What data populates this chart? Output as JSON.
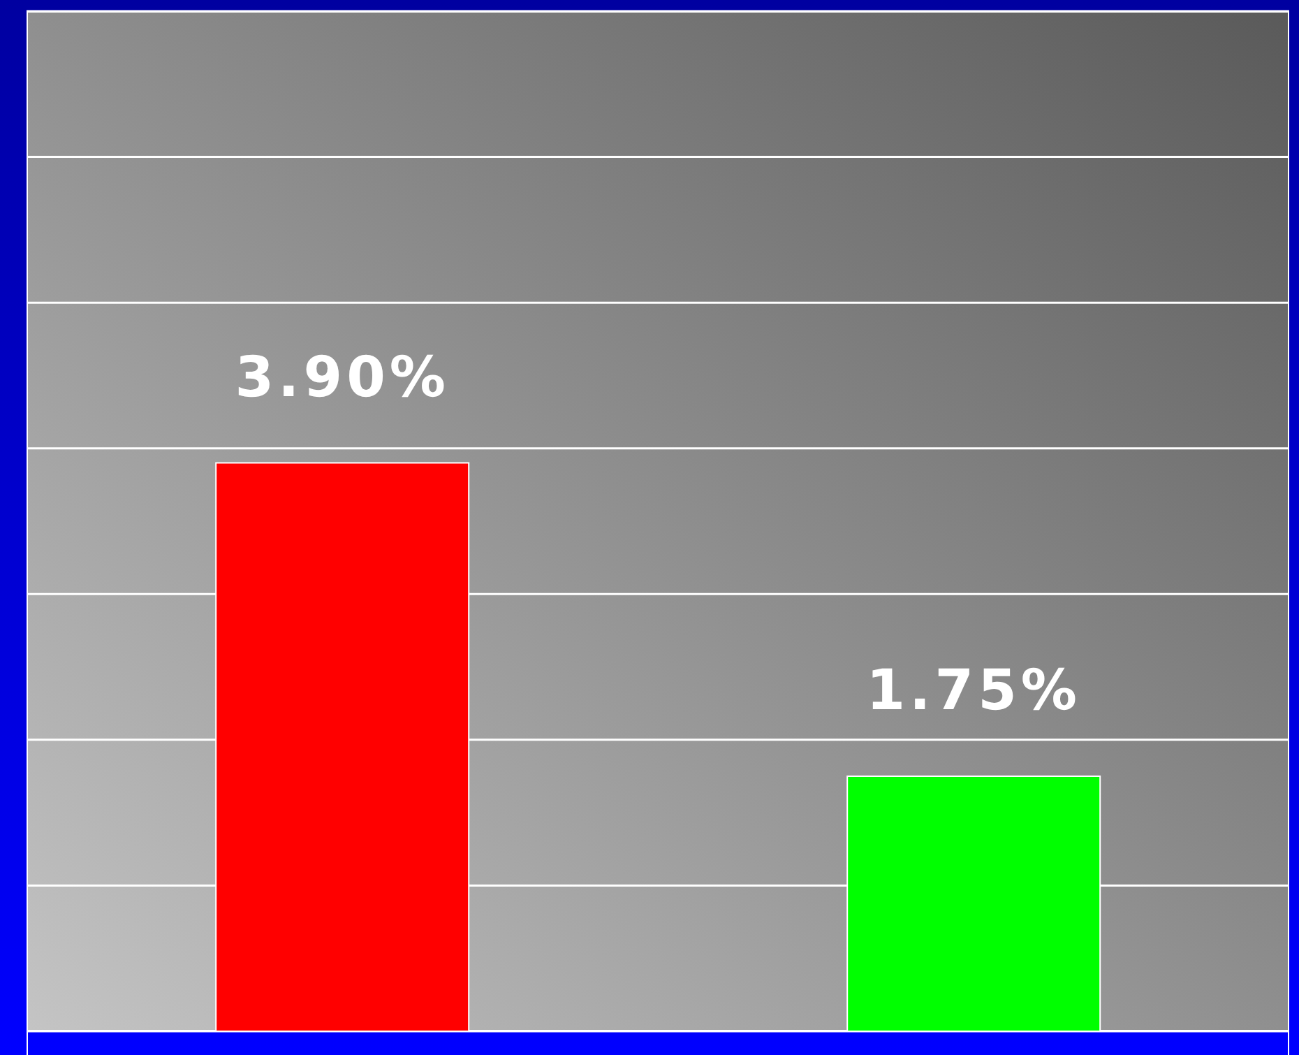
{
  "chart_data": {
    "type": "bar",
    "categories": [
      null,
      null
    ],
    "values": [
      3.9,
      1.75
    ],
    "colors": [
      "#ff0000",
      "#00ff00"
    ],
    "value_labels": [
      "3.90%",
      "1.75%"
    ],
    "ylim": [
      0,
      7
    ],
    "yticks": [
      {
        "value": 0,
        "label": null
      },
      {
        "value": 1,
        "label": null
      },
      {
        "value": 2,
        "label": null
      },
      {
        "value": 3,
        "label": null
      },
      {
        "value": 4,
        "label": null
      },
      {
        "value": 5,
        "label": null
      },
      {
        "value": 6,
        "label": null
      },
      {
        "value": 7,
        "label": null
      }
    ],
    "grid": "y"
  }
}
